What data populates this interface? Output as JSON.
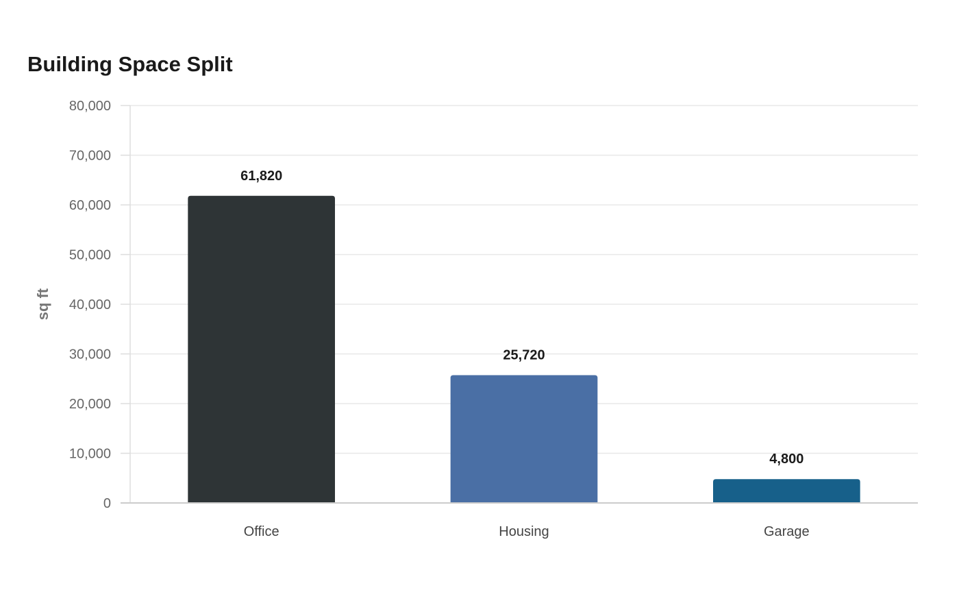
{
  "chart_data": {
    "type": "bar",
    "title": "Building Space Split",
    "xlabel": "",
    "ylabel": "sq ft",
    "categories": [
      "Office",
      "Housing",
      "Garage"
    ],
    "values": [
      61820,
      25720,
      4800
    ],
    "value_labels": [
      "61,820",
      "25,720",
      "4,800"
    ],
    "colors": [
      "#2e3436",
      "#4a6fa5",
      "#17608a"
    ],
    "ylim": [
      0,
      80000
    ],
    "yticks": [
      0,
      10000,
      20000,
      30000,
      40000,
      50000,
      60000,
      70000,
      80000
    ],
    "ytick_labels": [
      "0",
      "10,000",
      "20,000",
      "30,000",
      "40,000",
      "50,000",
      "60,000",
      "70,000",
      "80,000"
    ],
    "grid": true,
    "legend": "none"
  }
}
